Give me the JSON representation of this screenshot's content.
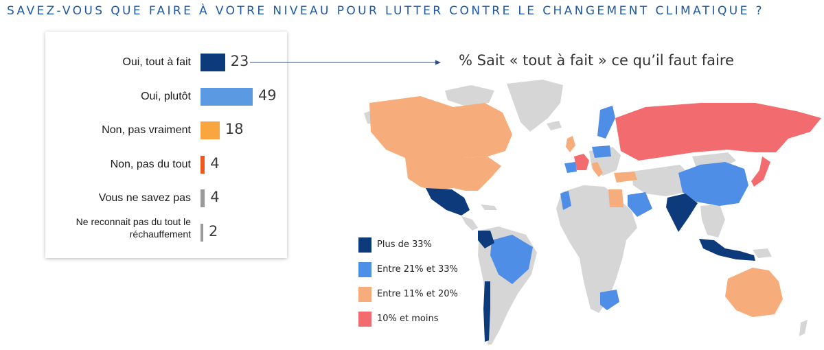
{
  "title": "SAVEZ-VOUS QUE FAIRE À VOTRE NIVEAU POUR LUTTER CONTRE LE CHANGEMENT CLIMATIQUE ?",
  "chart_data": [
    {
      "type": "bar",
      "orientation": "horizontal",
      "categories": [
        "Oui, tout à fait",
        "Oui, plutôt",
        "Non, pas vraiment",
        "Non, pas du tout",
        "Vous ne savez pas",
        "Ne reconnait pas du tout le réchauffement"
      ],
      "values": [
        23,
        49,
        18,
        4,
        4,
        2
      ],
      "colors": [
        "#0d3a7a",
        "#5b9ae3",
        "#f9a640",
        "#f0591e",
        "#9a9a9a",
        "#9a9a9a"
      ],
      "xlim": [
        0,
        100
      ]
    },
    {
      "type": "choropleth",
      "title": "% Sait « tout à fait » ce qu’il faut faire",
      "legend": [
        {
          "label": "Plus de 33%",
          "color": "#0d3a7a"
        },
        {
          "label": "Entre 21% et 33%",
          "color": "#4f8ee6"
        },
        {
          "label": "Entre 11% et 20%",
          "color": "#f6ad7b"
        },
        {
          "label": "10% et moins",
          "color": "#f26b6e"
        }
      ],
      "no_data_color": "#d6d6d6"
    }
  ]
}
